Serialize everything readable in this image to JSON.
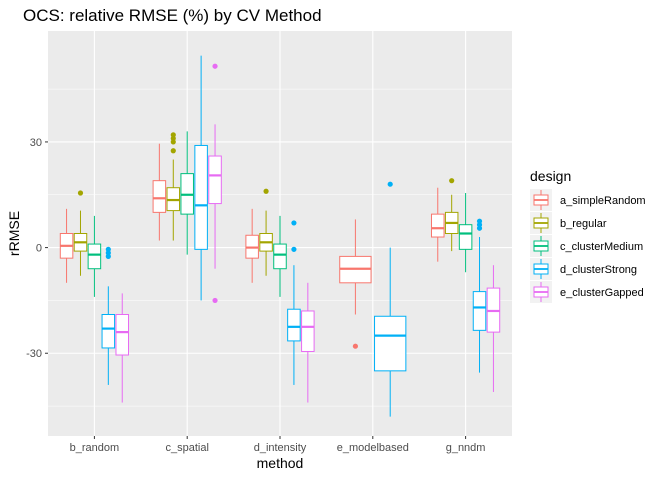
{
  "chart_data": {
    "type": "boxplot",
    "title": "OCS: relative RMSE (%) by CV Method",
    "xlabel": "method",
    "ylabel": "rRMSE",
    "ylim": [
      -53.5,
      61.5
    ],
    "yticks": [
      -30,
      0,
      30
    ],
    "ytick_labels": [
      "-30",
      "0",
      "30"
    ],
    "categories": [
      "b_random",
      "c_spatial",
      "d_intensity",
      "e_modelbased",
      "g_nndm"
    ],
    "grid": true,
    "legend": {
      "title": "design",
      "position": "right"
    },
    "series": [
      {
        "name": "a_simpleRandom",
        "color": "#F8766D",
        "boxes": [
          {
            "category": "b_random",
            "lower": -10,
            "q1": -3,
            "median": 0.5,
            "q3": 4,
            "upper": 11,
            "outliers": []
          },
          {
            "category": "c_spatial",
            "lower": 2,
            "q1": 10,
            "median": 14,
            "q3": 19,
            "upper": 29.5,
            "outliers": []
          },
          {
            "category": "d_intensity",
            "lower": -10,
            "q1": -3,
            "median": 0,
            "q3": 3.5,
            "upper": 11,
            "outliers": []
          },
          {
            "category": "e_modelbased",
            "lower": -19,
            "q1": -10,
            "median": -6,
            "q3": -2.5,
            "upper": 8,
            "outliers": [
              -28
            ]
          },
          {
            "category": "g_nndm",
            "lower": -4,
            "q1": 3,
            "median": 5.5,
            "q3": 9.5,
            "upper": 17,
            "outliers": []
          }
        ]
      },
      {
        "name": "b_regular",
        "color": "#A3A500",
        "boxes": [
          {
            "category": "b_random",
            "lower": -8,
            "q1": -1,
            "median": 1.5,
            "q3": 4,
            "upper": 10.5,
            "outliers": [
              15.5
            ]
          },
          {
            "category": "c_spatial",
            "lower": 2,
            "q1": 10.5,
            "median": 13.5,
            "q3": 17,
            "upper": 25,
            "outliers": [
              27.5,
              30,
              31,
              32
            ]
          },
          {
            "category": "d_intensity",
            "lower": -8,
            "q1": -1,
            "median": 1.5,
            "q3": 4,
            "upper": 10.5,
            "outliers": [
              16
            ]
          },
          {
            "category": "g_nndm",
            "lower": -1,
            "q1": 4,
            "median": 7,
            "q3": 10,
            "upper": 15,
            "outliers": [
              19
            ]
          }
        ]
      },
      {
        "name": "c_clusterMedium",
        "color": "#00BF7D",
        "boxes": [
          {
            "category": "b_random",
            "lower": -14,
            "q1": -6,
            "median": -2,
            "q3": 1,
            "upper": 9,
            "outliers": []
          },
          {
            "category": "c_spatial",
            "lower": -2,
            "q1": 9.5,
            "median": 15,
            "q3": 21,
            "upper": 33,
            "outliers": []
          },
          {
            "category": "d_intensity",
            "lower": -14,
            "q1": -6,
            "median": -2,
            "q3": 1,
            "upper": 9,
            "outliers": []
          },
          {
            "category": "g_nndm",
            "lower": -7,
            "q1": -0.5,
            "median": 4,
            "q3": 6.5,
            "upper": 15.5,
            "outliers": []
          }
        ]
      },
      {
        "name": "d_clusterStrong",
        "color": "#00B0F6",
        "boxes": [
          {
            "category": "b_random",
            "lower": -39,
            "q1": -28.5,
            "median": -23,
            "q3": -19,
            "upper": -11,
            "outliers": [
              -0.5,
              -1.5,
              -2.5
            ]
          },
          {
            "category": "c_spatial",
            "lower": -15,
            "q1": -0.5,
            "median": 12,
            "q3": 29,
            "upper": 54.5,
            "outliers": []
          },
          {
            "category": "d_intensity",
            "lower": -39,
            "q1": -26.5,
            "median": -22.5,
            "q3": -17.5,
            "upper": -5,
            "outliers": [
              7,
              -0.5
            ]
          },
          {
            "category": "e_modelbased",
            "lower": -48,
            "q1": -35,
            "median": -25,
            "q3": -19.5,
            "upper": 0,
            "outliers": [
              18
            ]
          },
          {
            "category": "g_nndm",
            "lower": -35.5,
            "q1": -23.5,
            "median": -17,
            "q3": -12.5,
            "upper": 3,
            "outliers": [
              7.5,
              6.5,
              5.5
            ]
          }
        ]
      },
      {
        "name": "e_clusterGapped",
        "color": "#E76BF3",
        "boxes": [
          {
            "category": "b_random",
            "lower": -44,
            "q1": -30.5,
            "median": -24,
            "q3": -19,
            "upper": -13,
            "outliers": []
          },
          {
            "category": "c_spatial",
            "lower": -6,
            "q1": 12.5,
            "median": 20.5,
            "q3": 26,
            "upper": 35,
            "outliers": [
              51.5,
              -15
            ]
          },
          {
            "category": "d_intensity",
            "lower": -44,
            "q1": -29.5,
            "median": -22.5,
            "q3": -18,
            "upper": -10,
            "outliers": []
          },
          {
            "category": "g_nndm",
            "lower": -41,
            "q1": -24,
            "median": -18,
            "q3": -11.5,
            "upper": -5,
            "outliers": []
          }
        ]
      }
    ]
  }
}
